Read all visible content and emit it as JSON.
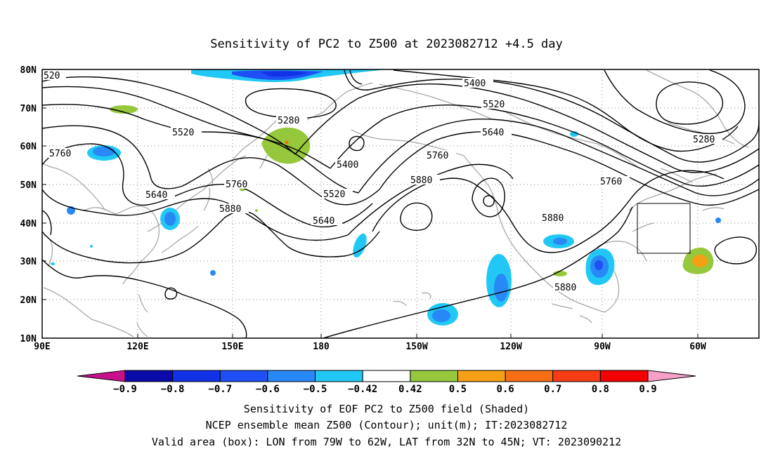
{
  "title": "Sensitivity of PC2 to Z500 at 2023082712 +4.5 day",
  "lat_labels": [
    "80N",
    "70N",
    "60N",
    "50N",
    "40N",
    "30N",
    "20N",
    "10N"
  ],
  "lon_labels": [
    "90E",
    "120E",
    "150E",
    "180",
    "150W",
    "120W",
    "90W",
    "60W"
  ],
  "contour_labels": {
    "c1": "520",
    "c2": "5400",
    "c3": "5520",
    "c4": "5280",
    "c5": "5520",
    "c6": "5640",
    "c7": "5760",
    "c8": "5760",
    "c9": "5640",
    "c10": "5760",
    "c11": "5880",
    "c12": "5400",
    "c13": "5520",
    "c14": "5640",
    "c15": "5880",
    "c16": "5880",
    "c17": "5760",
    "c18": "5880",
    "c19": "5280"
  },
  "colorbar": {
    "labels": [
      "-0.9",
      "-0.8",
      "-0.7",
      "-0.6",
      "-0.5",
      "-0.42",
      "0.42",
      "0.5",
      "0.6",
      "0.7",
      "0.8",
      "0.9"
    ],
    "colors": [
      "#c8108c",
      "#0a0aa8",
      "#1232e8",
      "#1e50f5",
      "#2888f5",
      "#22c8f5",
      "#ffffff",
      "#96c83c",
      "#f5a014",
      "#f56e14",
      "#f53c14",
      "#f50000",
      "#f5a0c8"
    ]
  },
  "captions": {
    "line1": "Sensitivity of EOF PC2 to Z500 field (Shaded)",
    "line2": "NCEP ensemble mean Z500 (Contour); unit(m); IT:2023082712",
    "line3": "Valid area (box): LON from 79W to 62W, LAT from 32N to 45N; VT: 2023090212"
  }
}
